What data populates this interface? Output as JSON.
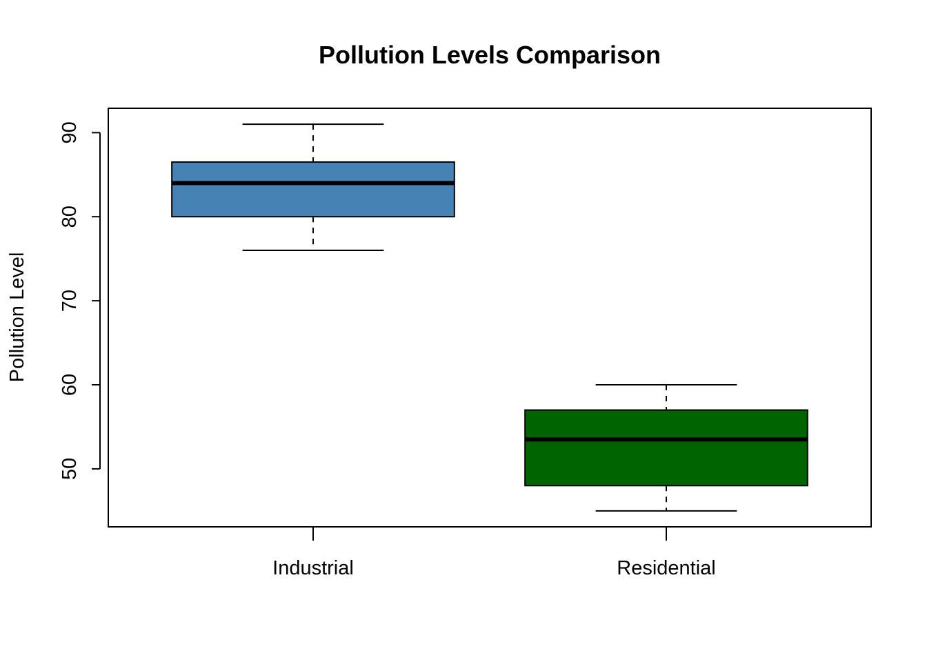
{
  "chart_data": {
    "type": "boxplot",
    "title": "Pollution Levels Comparison",
    "xlabel": "",
    "ylabel": "Pollution Level",
    "categories": [
      "Industrial",
      "Residential"
    ],
    "boxes": [
      {
        "category": "Industrial",
        "min": 76,
        "q1": 80,
        "median": 84,
        "q3": 86.5,
        "max": 91,
        "color": "#4682B4"
      },
      {
        "category": "Residential",
        "min": 45,
        "q1": 48,
        "median": 53.5,
        "q3": 57,
        "max": 60,
        "color": "#006400"
      }
    ],
    "yticks": [
      50,
      60,
      70,
      80,
      90
    ],
    "ylim": [
      43.1,
      92.9
    ],
    "grid": false,
    "legend": "none"
  }
}
